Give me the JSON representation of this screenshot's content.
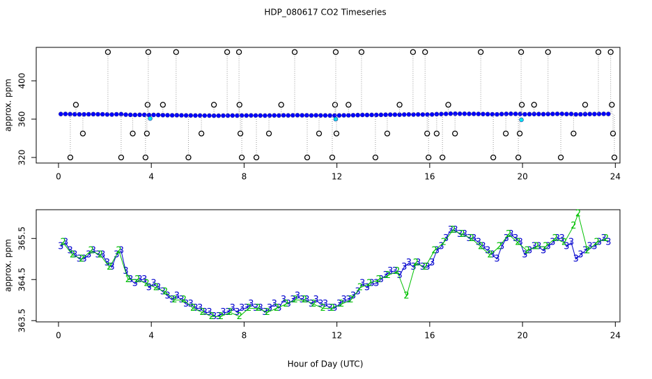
{
  "chart_data": [
    {
      "type": "scatter",
      "title": "HDP_080617  CO2 Timeseries",
      "y_label": "approx. ppm",
      "xlim": [
        -0.96,
        24.2
      ],
      "ylim": [
        314.2,
        434.9
      ],
      "xticks": [
        0,
        4,
        8,
        12,
        16,
        20,
        24
      ],
      "yticks": [
        320,
        360,
        400
      ],
      "series": [
        {
          "color": "#0000ff",
          "filled": true,
          "line": true,
          "x": [
            0.1,
            0.3,
            0.5,
            0.7,
            0.9,
            1.1,
            1.3,
            1.5,
            1.7,
            1.9,
            2.1,
            2.3,
            2.5,
            2.7,
            2.9,
            3.1,
            3.3,
            3.5,
            3.7,
            3.9,
            4.1,
            4.3,
            4.5,
            4.7,
            4.9,
            5.1,
            5.3,
            5.5,
            5.7,
            5.9,
            6.1,
            6.3,
            6.5,
            6.7,
            6.9,
            7.1,
            7.3,
            7.5,
            7.7,
            7.9,
            8.1,
            8.3,
            8.5,
            8.7,
            8.9,
            9.1,
            9.3,
            9.5,
            9.7,
            9.9,
            10.1,
            10.3,
            10.5,
            10.7,
            10.9,
            11.1,
            11.3,
            11.5,
            11.7,
            11.9,
            12.1,
            12.3,
            12.5,
            12.7,
            12.9,
            13.1,
            13.3,
            13.5,
            13.7,
            13.9,
            14.1,
            14.3,
            14.5,
            14.7,
            14.9,
            15.1,
            15.3,
            15.5,
            15.7,
            15.9,
            16.1,
            16.3,
            16.5,
            16.7,
            16.9,
            17.1,
            17.3,
            17.5,
            17.7,
            17.9,
            18.1,
            18.3,
            18.5,
            18.7,
            18.9,
            19.1,
            19.3,
            19.5,
            19.7,
            19.9,
            20.1,
            20.3,
            20.5,
            20.7,
            20.9,
            21.1,
            21.3,
            21.5,
            21.7,
            21.9,
            22.1,
            22.3,
            22.5,
            22.7,
            22.9,
            23.1,
            23.3,
            23.5,
            23.7
          ],
          "values": [
            365.3,
            365.4,
            365.2,
            365.1,
            365.0,
            365.0,
            365.1,
            365.2,
            365.1,
            365.1,
            364.9,
            364.8,
            365.1,
            365.2,
            364.7,
            364.5,
            364.4,
            364.5,
            364.5,
            364.3,
            364.4,
            364.3,
            364.2,
            364.1,
            364.0,
            364.1,
            364.0,
            363.9,
            363.9,
            363.8,
            363.8,
            363.7,
            363.7,
            363.6,
            363.6,
            363.7,
            363.7,
            363.8,
            363.7,
            363.8,
            363.8,
            363.9,
            363.8,
            363.8,
            363.7,
            363.8,
            363.9,
            363.8,
            364.0,
            363.9,
            364.0,
            364.1,
            364.0,
            364.0,
            363.9,
            364.0,
            363.9,
            363.9,
            363.8,
            363.8,
            363.9,
            364.0,
            364.0,
            364.1,
            364.2,
            364.4,
            364.3,
            364.4,
            364.4,
            364.5,
            364.6,
            364.7,
            364.7,
            364.6,
            364.8,
            364.9,
            364.8,
            364.9,
            364.8,
            364.8,
            364.9,
            365.2,
            365.3,
            365.5,
            365.7,
            365.7,
            365.6,
            365.6,
            365.5,
            365.5,
            365.4,
            365.3,
            365.2,
            365.1,
            365.0,
            365.3,
            365.5,
            365.6,
            365.5,
            365.4,
            365.1,
            365.2,
            365.3,
            365.3,
            365.2,
            365.3,
            365.4,
            365.5,
            365.5,
            365.3,
            365.4,
            365.0,
            365.1,
            365.2,
            365.3,
            365.3,
            365.4,
            365.5,
            365.4
          ]
        },
        {
          "color": "#00e5ee",
          "filled": true,
          "line": false,
          "x": [
            3.95,
            11.95,
            19.95
          ],
          "values": [
            360.7,
            360.0,
            359.3
          ]
        },
        {
          "color": "#000000",
          "filled": false,
          "line": false,
          "x": [
            0.51,
            0.75,
            1.05,
            2.13,
            2.7,
            3.2,
            3.75,
            3.81,
            3.84,
            3.87,
            4.5,
            5.07,
            5.6,
            6.16,
            6.7,
            7.27,
            7.78,
            7.8,
            7.84,
            7.9,
            8.53,
            9.07,
            9.6,
            10.18,
            10.72,
            11.23,
            11.8,
            11.92,
            11.95,
            11.98,
            12.5,
            13.06,
            13.66,
            14.17,
            14.7,
            15.28,
            15.8,
            15.89,
            15.95,
            16.3,
            16.55,
            16.8,
            17.09,
            18.2,
            18.74,
            19.28,
            19.82,
            19.88,
            19.94,
            19.97,
            20.5,
            21.1,
            21.65,
            22.2,
            22.7,
            23.27,
            23.8,
            23.85,
            23.9,
            23.96
          ],
          "values": [
            320,
            375,
            345,
            430,
            320,
            345,
            320,
            345,
            375,
            430,
            375,
            430,
            320,
            345,
            375,
            430,
            430,
            375,
            345,
            320,
            320,
            345,
            375,
            430,
            320,
            345,
            320,
            375,
            430,
            345,
            375,
            430,
            320,
            345,
            375,
            430,
            430,
            345,
            320,
            345,
            320,
            375,
            345,
            430,
            320,
            345,
            320,
            345,
            430,
            375,
            375,
            430,
            320,
            345,
            375,
            430,
            430,
            375,
            345,
            320
          ]
        }
      ]
    },
    {
      "type": "scatter",
      "y_label": "approx. ppm",
      "x_label": "Hour of Day (UTC)",
      "xlim": [
        -0.96,
        24.2
      ],
      "ylim": [
        363.47,
        366.2
      ],
      "xticks": [
        0,
        4,
        8,
        12,
        16,
        20,
        24
      ],
      "yticks": [
        363.5,
        364.5,
        365.5
      ],
      "series": [
        {
          "color": "#0000cd",
          "marker": "3",
          "line": true,
          "x": [
            0.1,
            0.3,
            0.5,
            0.7,
            0.9,
            1.1,
            1.3,
            1.5,
            1.7,
            1.9,
            2.1,
            2.3,
            2.5,
            2.7,
            2.9,
            3.1,
            3.3,
            3.5,
            3.7,
            3.9,
            4.1,
            4.3,
            4.5,
            4.7,
            4.9,
            5.1,
            5.3,
            5.5,
            5.7,
            5.9,
            6.1,
            6.3,
            6.5,
            6.7,
            6.9,
            7.1,
            7.3,
            7.5,
            7.7,
            7.9,
            8.1,
            8.3,
            8.5,
            8.7,
            8.9,
            9.1,
            9.3,
            9.5,
            9.7,
            9.9,
            10.1,
            10.3,
            10.5,
            10.7,
            10.9,
            11.1,
            11.3,
            11.5,
            11.7,
            11.9,
            12.1,
            12.3,
            12.5,
            12.7,
            12.9,
            13.1,
            13.3,
            13.5,
            13.7,
            13.9,
            14.1,
            14.3,
            14.5,
            14.7,
            14.9,
            15.1,
            15.3,
            15.5,
            15.7,
            15.9,
            16.1,
            16.3,
            16.5,
            16.7,
            16.9,
            17.1,
            17.3,
            17.5,
            17.7,
            17.9,
            18.1,
            18.3,
            18.5,
            18.7,
            18.9,
            19.1,
            19.3,
            19.5,
            19.7,
            19.9,
            20.1,
            20.3,
            20.5,
            20.7,
            20.9,
            21.1,
            21.3,
            21.5,
            21.7,
            21.9,
            22.1,
            22.3,
            22.5,
            22.7,
            22.9,
            23.1,
            23.3,
            23.5,
            23.7
          ],
          "values": [
            365.3,
            365.4,
            365.2,
            365.1,
            365.0,
            365.0,
            365.1,
            365.2,
            365.1,
            365.1,
            364.9,
            364.8,
            365.1,
            365.2,
            364.7,
            364.5,
            364.4,
            364.5,
            364.5,
            364.3,
            364.4,
            364.3,
            364.2,
            364.1,
            364.0,
            364.1,
            364.0,
            363.9,
            363.9,
            363.8,
            363.8,
            363.7,
            363.7,
            363.6,
            363.6,
            363.7,
            363.7,
            363.8,
            363.7,
            363.8,
            363.8,
            363.9,
            363.8,
            363.8,
            363.7,
            363.8,
            363.9,
            363.8,
            364.0,
            363.9,
            364.0,
            364.1,
            364.0,
            364.0,
            363.9,
            364.0,
            363.9,
            363.9,
            363.8,
            363.8,
            363.9,
            364.0,
            364.0,
            364.1,
            364.2,
            364.4,
            364.3,
            364.4,
            364.4,
            364.5,
            364.6,
            364.7,
            364.7,
            364.6,
            364.8,
            364.9,
            364.8,
            364.9,
            364.8,
            364.8,
            364.9,
            365.2,
            365.3,
            365.5,
            365.7,
            365.7,
            365.6,
            365.6,
            365.5,
            365.5,
            365.4,
            365.3,
            365.2,
            365.1,
            365.0,
            365.3,
            365.5,
            365.6,
            365.5,
            365.4,
            365.1,
            365.2,
            365.3,
            365.3,
            365.2,
            365.3,
            365.4,
            365.5,
            365.5,
            365.3,
            365.4,
            365.0,
            365.1,
            365.2,
            365.3,
            365.3,
            365.4,
            365.5,
            365.4
          ]
        },
        {
          "color": "#00c000",
          "marker": "2",
          "line": true,
          "x": [
            0.2,
            0.6,
            1.0,
            1.4,
            1.8,
            2.2,
            2.6,
            3.0,
            3.4,
            3.8,
            4.2,
            4.6,
            5.0,
            5.4,
            5.8,
            6.2,
            6.6,
            7.0,
            7.4,
            7.8,
            8.2,
            8.6,
            9.0,
            9.4,
            9.8,
            10.2,
            10.6,
            11.0,
            11.4,
            11.8,
            12.2,
            12.6,
            13.0,
            13.4,
            13.8,
            14.2,
            14.6,
            15.0,
            15.4,
            15.8,
            16.2,
            16.6,
            17.0,
            17.4,
            17.8,
            18.2,
            18.6,
            19.0,
            19.4,
            19.8,
            20.2,
            20.6,
            21.0,
            21.4,
            21.8,
            22.2,
            22.4,
            22.8,
            23.2,
            23.6
          ],
          "values": [
            365.4,
            365.1,
            365.0,
            365.2,
            365.1,
            364.8,
            365.2,
            364.5,
            364.5,
            364.4,
            364.3,
            364.2,
            364.0,
            364.0,
            363.8,
            363.7,
            363.6,
            363.6,
            363.7,
            363.6,
            363.8,
            363.8,
            363.7,
            363.8,
            363.9,
            364.0,
            364.0,
            363.9,
            363.8,
            363.8,
            363.9,
            364.0,
            364.3,
            364.4,
            364.5,
            364.6,
            364.7,
            364.1,
            364.9,
            364.8,
            365.2,
            365.4,
            365.7,
            365.6,
            365.5,
            365.3,
            365.1,
            365.3,
            365.6,
            365.4,
            365.2,
            365.3,
            365.3,
            365.5,
            365.4,
            365.8,
            366.1,
            365.2,
            365.4,
            365.5
          ]
        }
      ]
    }
  ]
}
